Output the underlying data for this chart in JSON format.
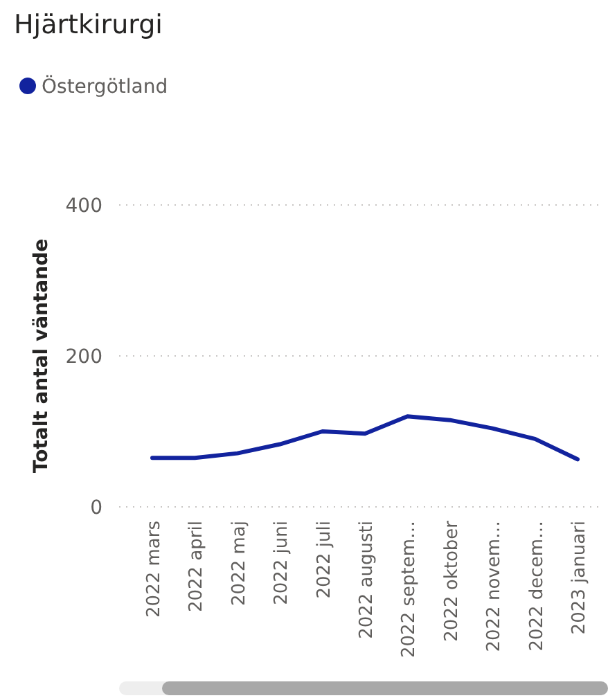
{
  "chart_data": {
    "type": "line",
    "title": "Hjärtkirurgi",
    "ylabel": "Totalt antal väntande",
    "categories": [
      "2022 mars",
      "2022 april",
      "2022 maj",
      "2022 juni",
      "2022 juli",
      "2022 augusti",
      "2022 septem…",
      "2022 oktober",
      "2022 novem…",
      "2022 decem…",
      "2023 januari"
    ],
    "series": [
      {
        "name": "Östergötland",
        "color": "#12239e",
        "values": [
          65,
          65,
          71,
          83,
          100,
          97,
          120,
          115,
          104,
          90,
          63
        ]
      }
    ],
    "ylim": [
      0,
      400
    ],
    "yticks": [
      0,
      200,
      400
    ],
    "grid": "y",
    "legend": "top left",
    "marker": "none",
    "line_style": "solid"
  }
}
